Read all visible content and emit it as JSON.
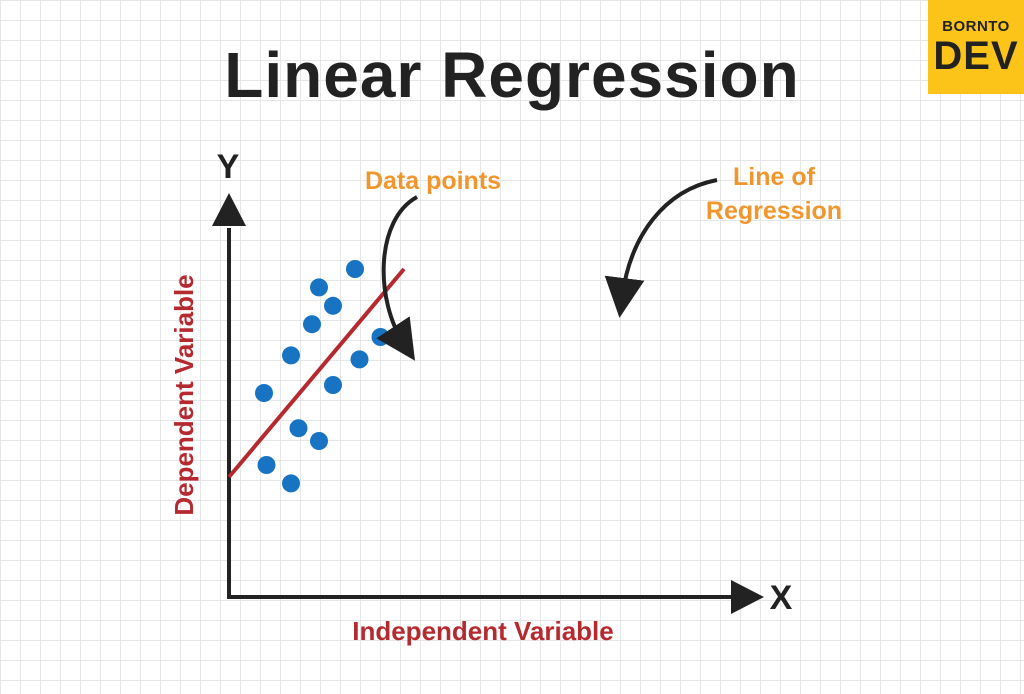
{
  "title": "Linear Regression",
  "logo": {
    "top": "BORNTO",
    "bottom": "DEV"
  },
  "chart_data": {
    "type": "scatter",
    "title": "Linear Regression",
    "xlabel": "Independent Variable",
    "ylabel": "Dependent Variable",
    "x_axis_letter": "X",
    "y_axis_letter": "Y",
    "xlim": [
      0,
      10
    ],
    "ylim": [
      0,
      10
    ],
    "points": [
      [
        0.7,
        5.1
      ],
      [
        0.75,
        3.3
      ],
      [
        1.24,
        6.04
      ],
      [
        1.24,
        2.84
      ],
      [
        1.39,
        4.22
      ],
      [
        1.66,
        6.82
      ],
      [
        1.8,
        7.74
      ],
      [
        1.8,
        3.9
      ],
      [
        2.08,
        7.28
      ],
      [
        2.08,
        5.3
      ],
      [
        2.52,
        8.2
      ],
      [
        2.61,
        5.94
      ],
      [
        3.03,
        6.5
      ]
    ],
    "regression_line": {
      "x": [
        0,
        3.5
      ],
      "y": [
        3.0,
        8.2
      ]
    },
    "annotations": [
      "Data points",
      "Line of",
      "Regression"
    ],
    "colors": {
      "points": "#1874c3",
      "line": "#b52a2f",
      "axes": "#222222",
      "annotation": "#f0962d"
    }
  }
}
